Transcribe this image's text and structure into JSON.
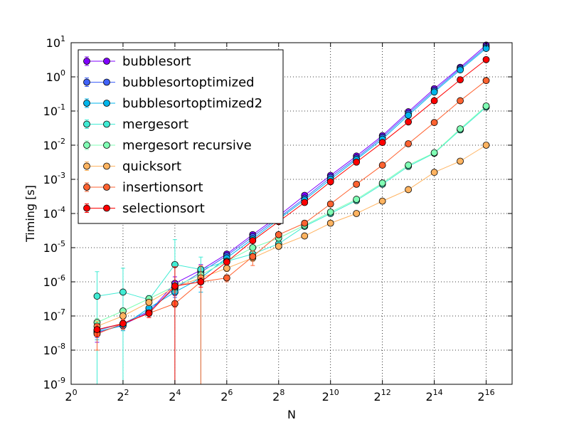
{
  "chart_data": {
    "type": "line",
    "title": "",
    "xlabel": "N",
    "ylabel": "Timing [s]",
    "x_scale": "log2",
    "y_scale": "log10",
    "xlim": [
      1,
      131072
    ],
    "ylim": [
      1e-09,
      10
    ],
    "x_ticks": [
      {
        "value": 1,
        "base": "2",
        "exp": "0"
      },
      {
        "value": 4,
        "base": "2",
        "exp": "2"
      },
      {
        "value": 16,
        "base": "2",
        "exp": "4"
      },
      {
        "value": 64,
        "base": "2",
        "exp": "6"
      },
      {
        "value": 256,
        "base": "2",
        "exp": "8"
      },
      {
        "value": 1024,
        "base": "2",
        "exp": "10"
      },
      {
        "value": 4096,
        "base": "2",
        "exp": "12"
      },
      {
        "value": 16384,
        "base": "2",
        "exp": "14"
      },
      {
        "value": 65536,
        "base": "2",
        "exp": "16"
      }
    ],
    "y_ticks": [
      {
        "value": 1e-09,
        "base": "10",
        "exp": "-9"
      },
      {
        "value": 1e-08,
        "base": "10",
        "exp": "-8"
      },
      {
        "value": 1e-07,
        "base": "10",
        "exp": "-7"
      },
      {
        "value": 1e-06,
        "base": "10",
        "exp": "-6"
      },
      {
        "value": 1e-05,
        "base": "10",
        "exp": "-5"
      },
      {
        "value": 0.0001,
        "base": "10",
        "exp": "-4"
      },
      {
        "value": 0.001,
        "base": "10",
        "exp": "-3"
      },
      {
        "value": 0.01,
        "base": "10",
        "exp": "-2"
      },
      {
        "value": 0.1,
        "base": "10",
        "exp": "-1"
      },
      {
        "value": 1,
        "base": "10",
        "exp": "0"
      },
      {
        "value": 10,
        "base": "10",
        "exp": "1"
      }
    ],
    "grid": true,
    "legend_position": "top-left",
    "x": [
      2,
      4,
      8,
      16,
      32,
      64,
      128,
      256,
      512,
      1024,
      2048,
      4096,
      8192,
      16384,
      32768,
      65536
    ],
    "series": [
      {
        "name": "bubblesort",
        "color": "#8000ff",
        "values": [
          3.2e-08,
          5.5e-08,
          1.3e-07,
          9e-07,
          2.2e-06,
          6.5e-06,
          2.4e-05,
          8.5e-05,
          0.00034,
          0.0013,
          0.0048,
          0.019,
          0.095,
          0.45,
          1.9,
          8.5
        ],
        "errors": [
          1.5e-08,
          1.5e-08,
          3e-08,
          5e-07,
          1e-06,
          1e-06,
          3e-06,
          1e-05,
          3e-05,
          0.0001,
          0.0003,
          0.001,
          0.005,
          0.02,
          0.1,
          0.3
        ]
      },
      {
        "name": "bubblesortoptimized",
        "color": "#4062fa",
        "values": [
          3.8e-08,
          6e-08,
          1.4e-07,
          6.5e-07,
          1.9e-06,
          5.8e-06,
          2.1e-05,
          7.5e-05,
          0.00028,
          0.00115,
          0.0042,
          0.017,
          0.085,
          0.4,
          1.75,
          7.5
        ],
        "errors": [
          1.5e-08,
          1.5e-08,
          3e-08,
          3e-07,
          8e-07,
          1e-06,
          3e-06,
          1e-05,
          3e-05,
          0.0001,
          0.0003,
          0.001,
          0.005,
          0.02,
          0.1,
          0.3
        ]
      },
      {
        "name": "bubblesortoptimized2",
        "color": "#00b5eb",
        "values": [
          3.5e-08,
          5.2e-08,
          1.7e-07,
          5e-07,
          1.3e-06,
          5e-06,
          1.8e-05,
          6.8e-05,
          0.00025,
          0.001,
          0.0038,
          0.015,
          0.075,
          0.36,
          1.6,
          6.8
        ],
        "errors": [
          1.5e-08,
          1.5e-08,
          3e-08,
          3e-07,
          8e-07,
          1e-06,
          3e-06,
          1e-05,
          3e-05,
          0.0001,
          0.0003,
          0.001,
          0.005,
          0.02,
          0.1,
          0.3
        ]
      },
      {
        "name": "mergesort",
        "color": "#40ecd4",
        "values": [
          3.8e-07,
          5e-07,
          3e-07,
          3.2e-06,
          2.3e-06,
          4e-06,
          6.5e-06,
          1.3e-05,
          4.2e-05,
          0.0001,
          0.00024,
          0.00072,
          0.0024,
          0.0058,
          0.028,
          0.13
        ],
        "errors": [
          1.6e-06,
          2e-06,
          1e-07,
          1.4e-05,
          3e-06,
          1e-06,
          1e-06,
          2e-06,
          5e-06,
          1e-05,
          3e-05,
          0.0001,
          0.0003,
          0.0005,
          0.003,
          0.01
        ]
      },
      {
        "name": "mergesort recursive",
        "color": "#80ffb4",
        "values": [
          6.5e-08,
          1.4e-07,
          3.2e-07,
          7.5e-07,
          1.6e-06,
          4e-06,
          1e-05,
          1.9e-05,
          4.5e-05,
          0.00011,
          0.00026,
          0.00078,
          0.0026,
          0.006,
          0.03,
          0.14
        ],
        "errors": [
          2e-08,
          3e-08,
          5e-08,
          2e-07,
          3e-07,
          5e-07,
          1e-06,
          2e-06,
          5e-06,
          1e-05,
          3e-05,
          0.0001,
          0.0003,
          0.0005,
          0.003,
          0.01
        ]
      },
      {
        "name": "quicksort",
        "color": "#ffb360",
        "values": [
          5e-08,
          1e-07,
          2.5e-07,
          7e-07,
          1.3e-06,
          2.5e-06,
          5e-06,
          1.1e-05,
          2.2e-05,
          5.2e-05,
          0.0001,
          0.00023,
          0.0005,
          0.0016,
          0.0034,
          0.01
        ],
        "errors": [
          2e-08,
          3e-08,
          5e-08,
          2e-07,
          3e-07,
          5e-07,
          1e-06,
          2e-06,
          3e-06,
          5e-06,
          1e-05,
          2e-05,
          5e-05,
          0.0001,
          0.0003,
          0.001
        ]
      },
      {
        "name": "insertionsort",
        "color": "#ff6230",
        "values": [
          3e-08,
          6e-08,
          1.2e-07,
          2.3e-07,
          1e-06,
          1.3e-06,
          5.5e-06,
          2.4e-05,
          5.2e-05,
          0.00019,
          0.00072,
          0.0026,
          0.011,
          0.046,
          0.2,
          0.78
        ],
        "errors": [
          2e-08,
          2e-08,
          3e-08,
          5e-08,
          2e-06,
          3e-07,
          2.5e-06,
          3e-06,
          5e-06,
          2e-05,
          7e-05,
          0.0003,
          0.001,
          0.005,
          0.02,
          0.05
        ]
      },
      {
        "name": "selectionsort",
        "color": "#ff0000",
        "values": [
          4e-08,
          6e-08,
          1.2e-07,
          7.5e-07,
          1e-06,
          3.8e-06,
          1.6e-05,
          5.8e-05,
          0.00021,
          0.00085,
          0.0032,
          0.012,
          0.048,
          0.2,
          0.82,
          3.2
        ],
        "errors": [
          1.5e-08,
          1.5e-08,
          3e-08,
          2e-06,
          3e-07,
          5e-07,
          2e-06,
          5e-06,
          2e-05,
          8e-05,
          0.0003,
          0.001,
          0.005,
          0.02,
          0.05,
          0.2
        ]
      }
    ]
  }
}
